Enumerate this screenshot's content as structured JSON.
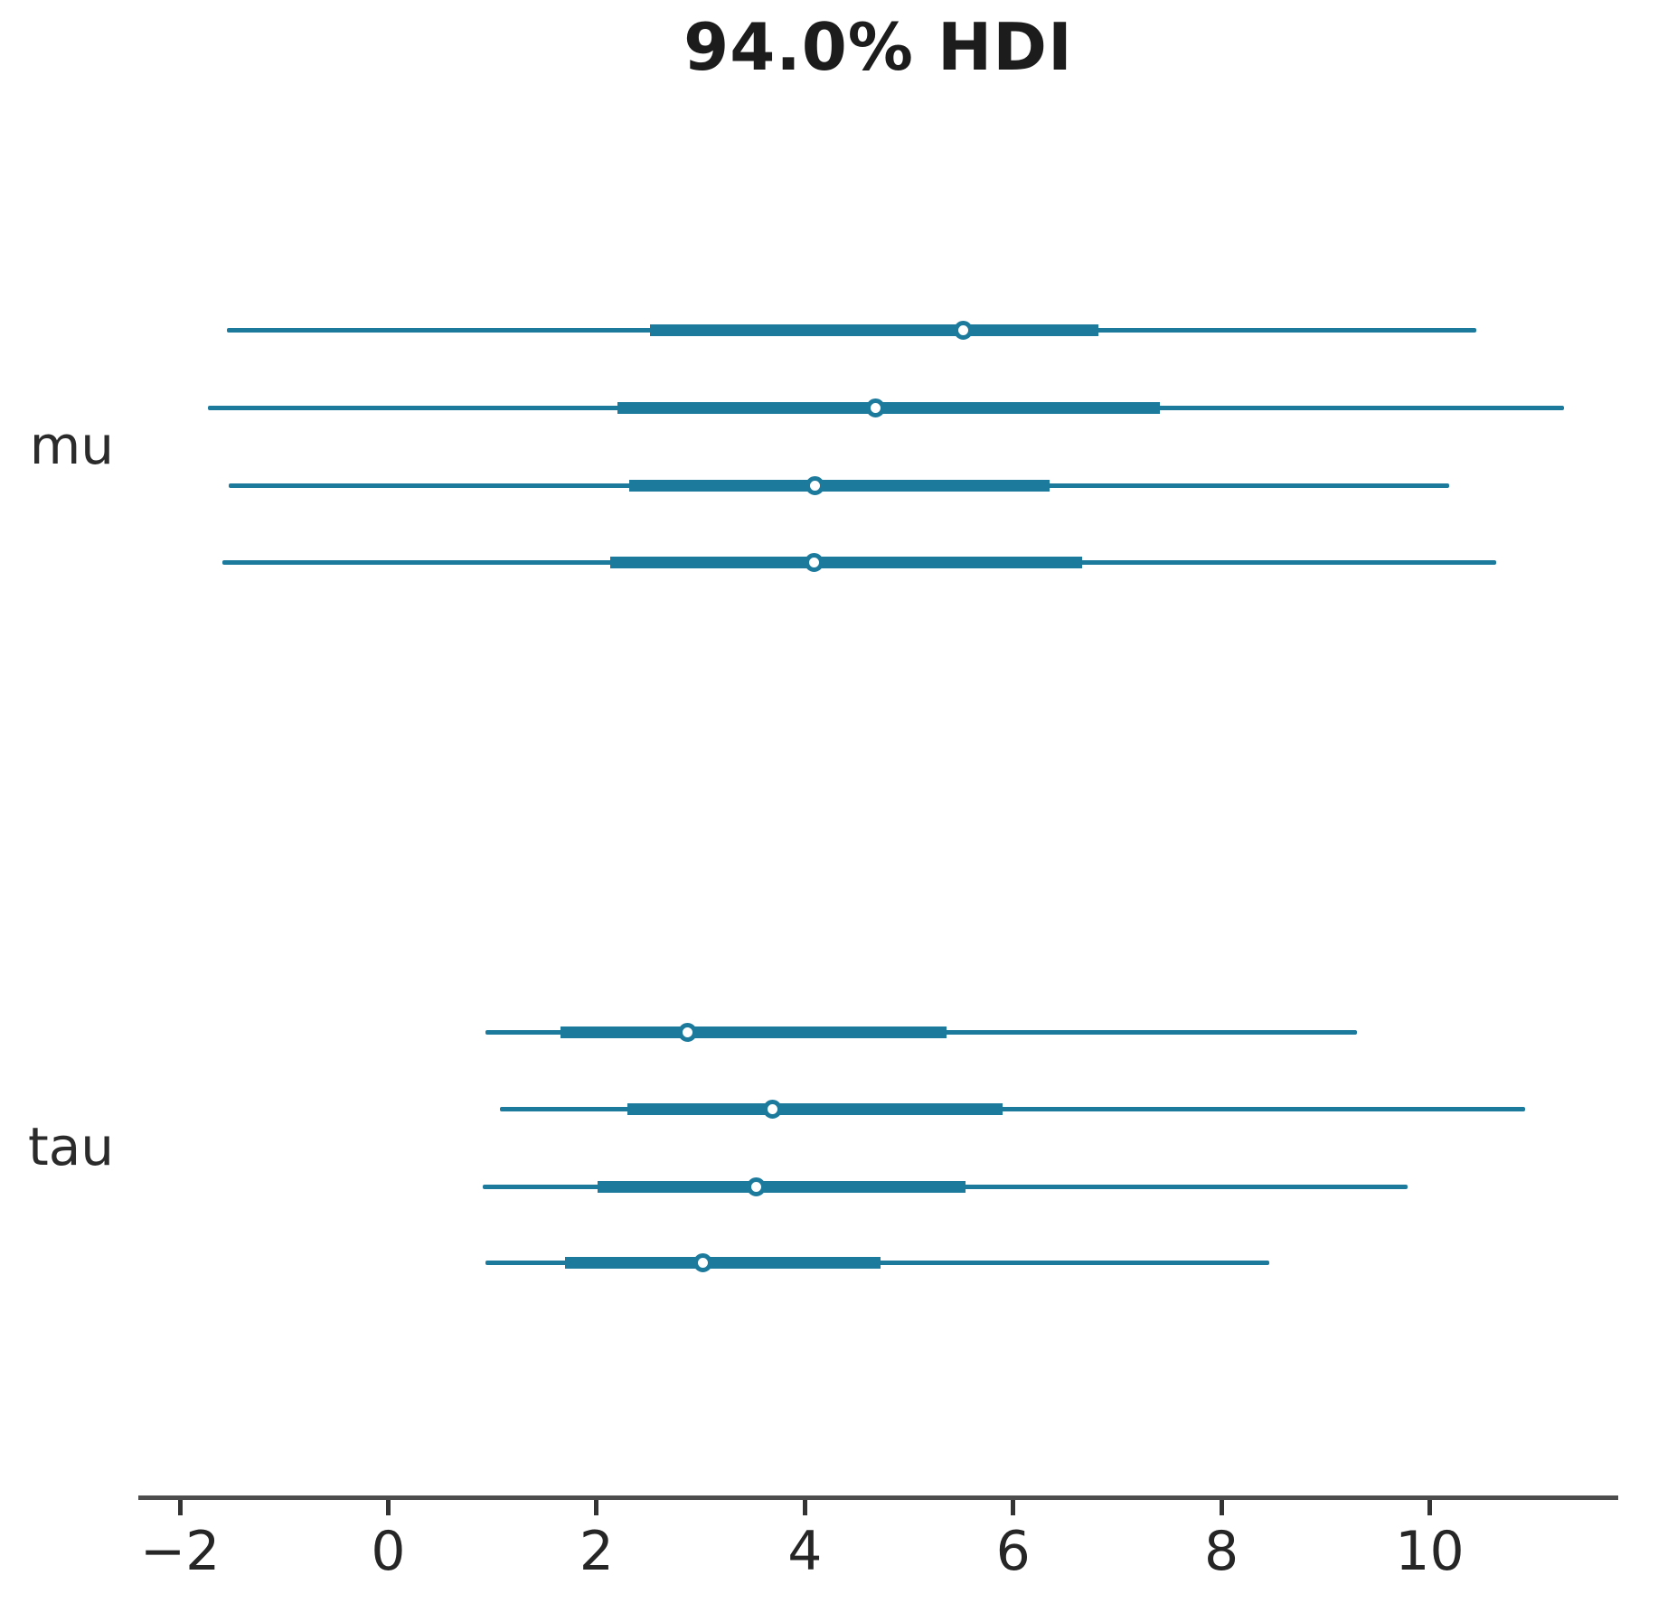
{
  "title": "94.0% HDI",
  "colors": {
    "interval": "#1c7b9d",
    "marker_face": "#ffffff",
    "axis_spine": "#4d4d4d",
    "tick": "#333333",
    "text": "#262626"
  },
  "chart_data": {
    "type": "forest",
    "title": "94.0% HDI",
    "hdi_probability": "94.0%",
    "orientation": "horizontal",
    "xlim": [
      -2.4,
      11.81
    ],
    "grid": false,
    "xticks": [
      {
        "label": "−2",
        "value": -2
      },
      {
        "label": "0",
        "value": 0
      },
      {
        "label": "2",
        "value": 2
      },
      {
        "label": "4",
        "value": 4
      },
      {
        "label": "6",
        "value": 6
      },
      {
        "label": "8",
        "value": 8
      },
      {
        "label": "10",
        "value": 10
      }
    ],
    "groups": [
      {
        "label": "mu",
        "rows": [
          {
            "chain": 0,
            "hdi_low": -1.55,
            "hdi_high": 10.45,
            "q25": 2.51,
            "q75": 6.82,
            "median": 5.52
          },
          {
            "chain": 1,
            "hdi_low": -1.73,
            "hdi_high": 11.29,
            "q25": 2.2,
            "q75": 7.41,
            "median": 4.68
          },
          {
            "chain": 2,
            "hdi_low": -1.53,
            "hdi_high": 10.19,
            "q25": 2.31,
            "q75": 6.35,
            "median": 4.1
          },
          {
            "chain": 3,
            "hdi_low": -1.59,
            "hdi_high": 10.64,
            "q25": 2.13,
            "q75": 6.66,
            "median": 4.09
          }
        ]
      },
      {
        "label": "tau",
        "rows": [
          {
            "chain": 0,
            "hdi_low": 0.93,
            "hdi_high": 9.3,
            "q25": 1.65,
            "q75": 5.36,
            "median": 2.87
          },
          {
            "chain": 1,
            "hdi_low": 1.07,
            "hdi_high": 10.92,
            "q25": 2.3,
            "q75": 5.9,
            "median": 3.69
          },
          {
            "chain": 2,
            "hdi_low": 0.91,
            "hdi_high": 9.79,
            "q25": 2.01,
            "q75": 5.54,
            "median": 3.53
          },
          {
            "chain": 3,
            "hdi_low": 0.93,
            "hdi_high": 8.46,
            "q25": 1.7,
            "q75": 4.73,
            "median": 3.02
          }
        ]
      }
    ]
  }
}
